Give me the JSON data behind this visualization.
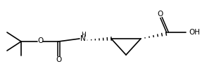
{
  "figsize": [
    3.04,
    1.18
  ],
  "dpi": 100,
  "bg_color": "#ffffff",
  "line_color": "#000000",
  "lw": 1.2,
  "lw_double": 1.1,
  "fs": 7.5,
  "fs_small": 6.5,
  "xlim": [
    0,
    304
  ],
  "ylim": [
    0,
    118
  ],
  "qx": 30,
  "qy": 59,
  "tbu_ul_x": 10,
  "tbu_ul_y": 72,
  "tbu_ll_x": 10,
  "tbu_ll_y": 46,
  "tbu_dn_x": 30,
  "tbu_dn_y": 39,
  "ox": 57,
  "oy": 59,
  "cbcx": 83,
  "cbcy": 59,
  "cbox": 83,
  "cboy": 38,
  "nhx": 118,
  "nhy": 63,
  "cp1x": 158,
  "cp1y": 63,
  "cp2x": 200,
  "cp2y": 63,
  "cp3x": 179,
  "cp3y": 40,
  "coohcx": 238,
  "coohcy": 72,
  "co2x": 229,
  "co2y": 93,
  "ohx": 270,
  "ohy": 72,
  "n_hash": 7
}
